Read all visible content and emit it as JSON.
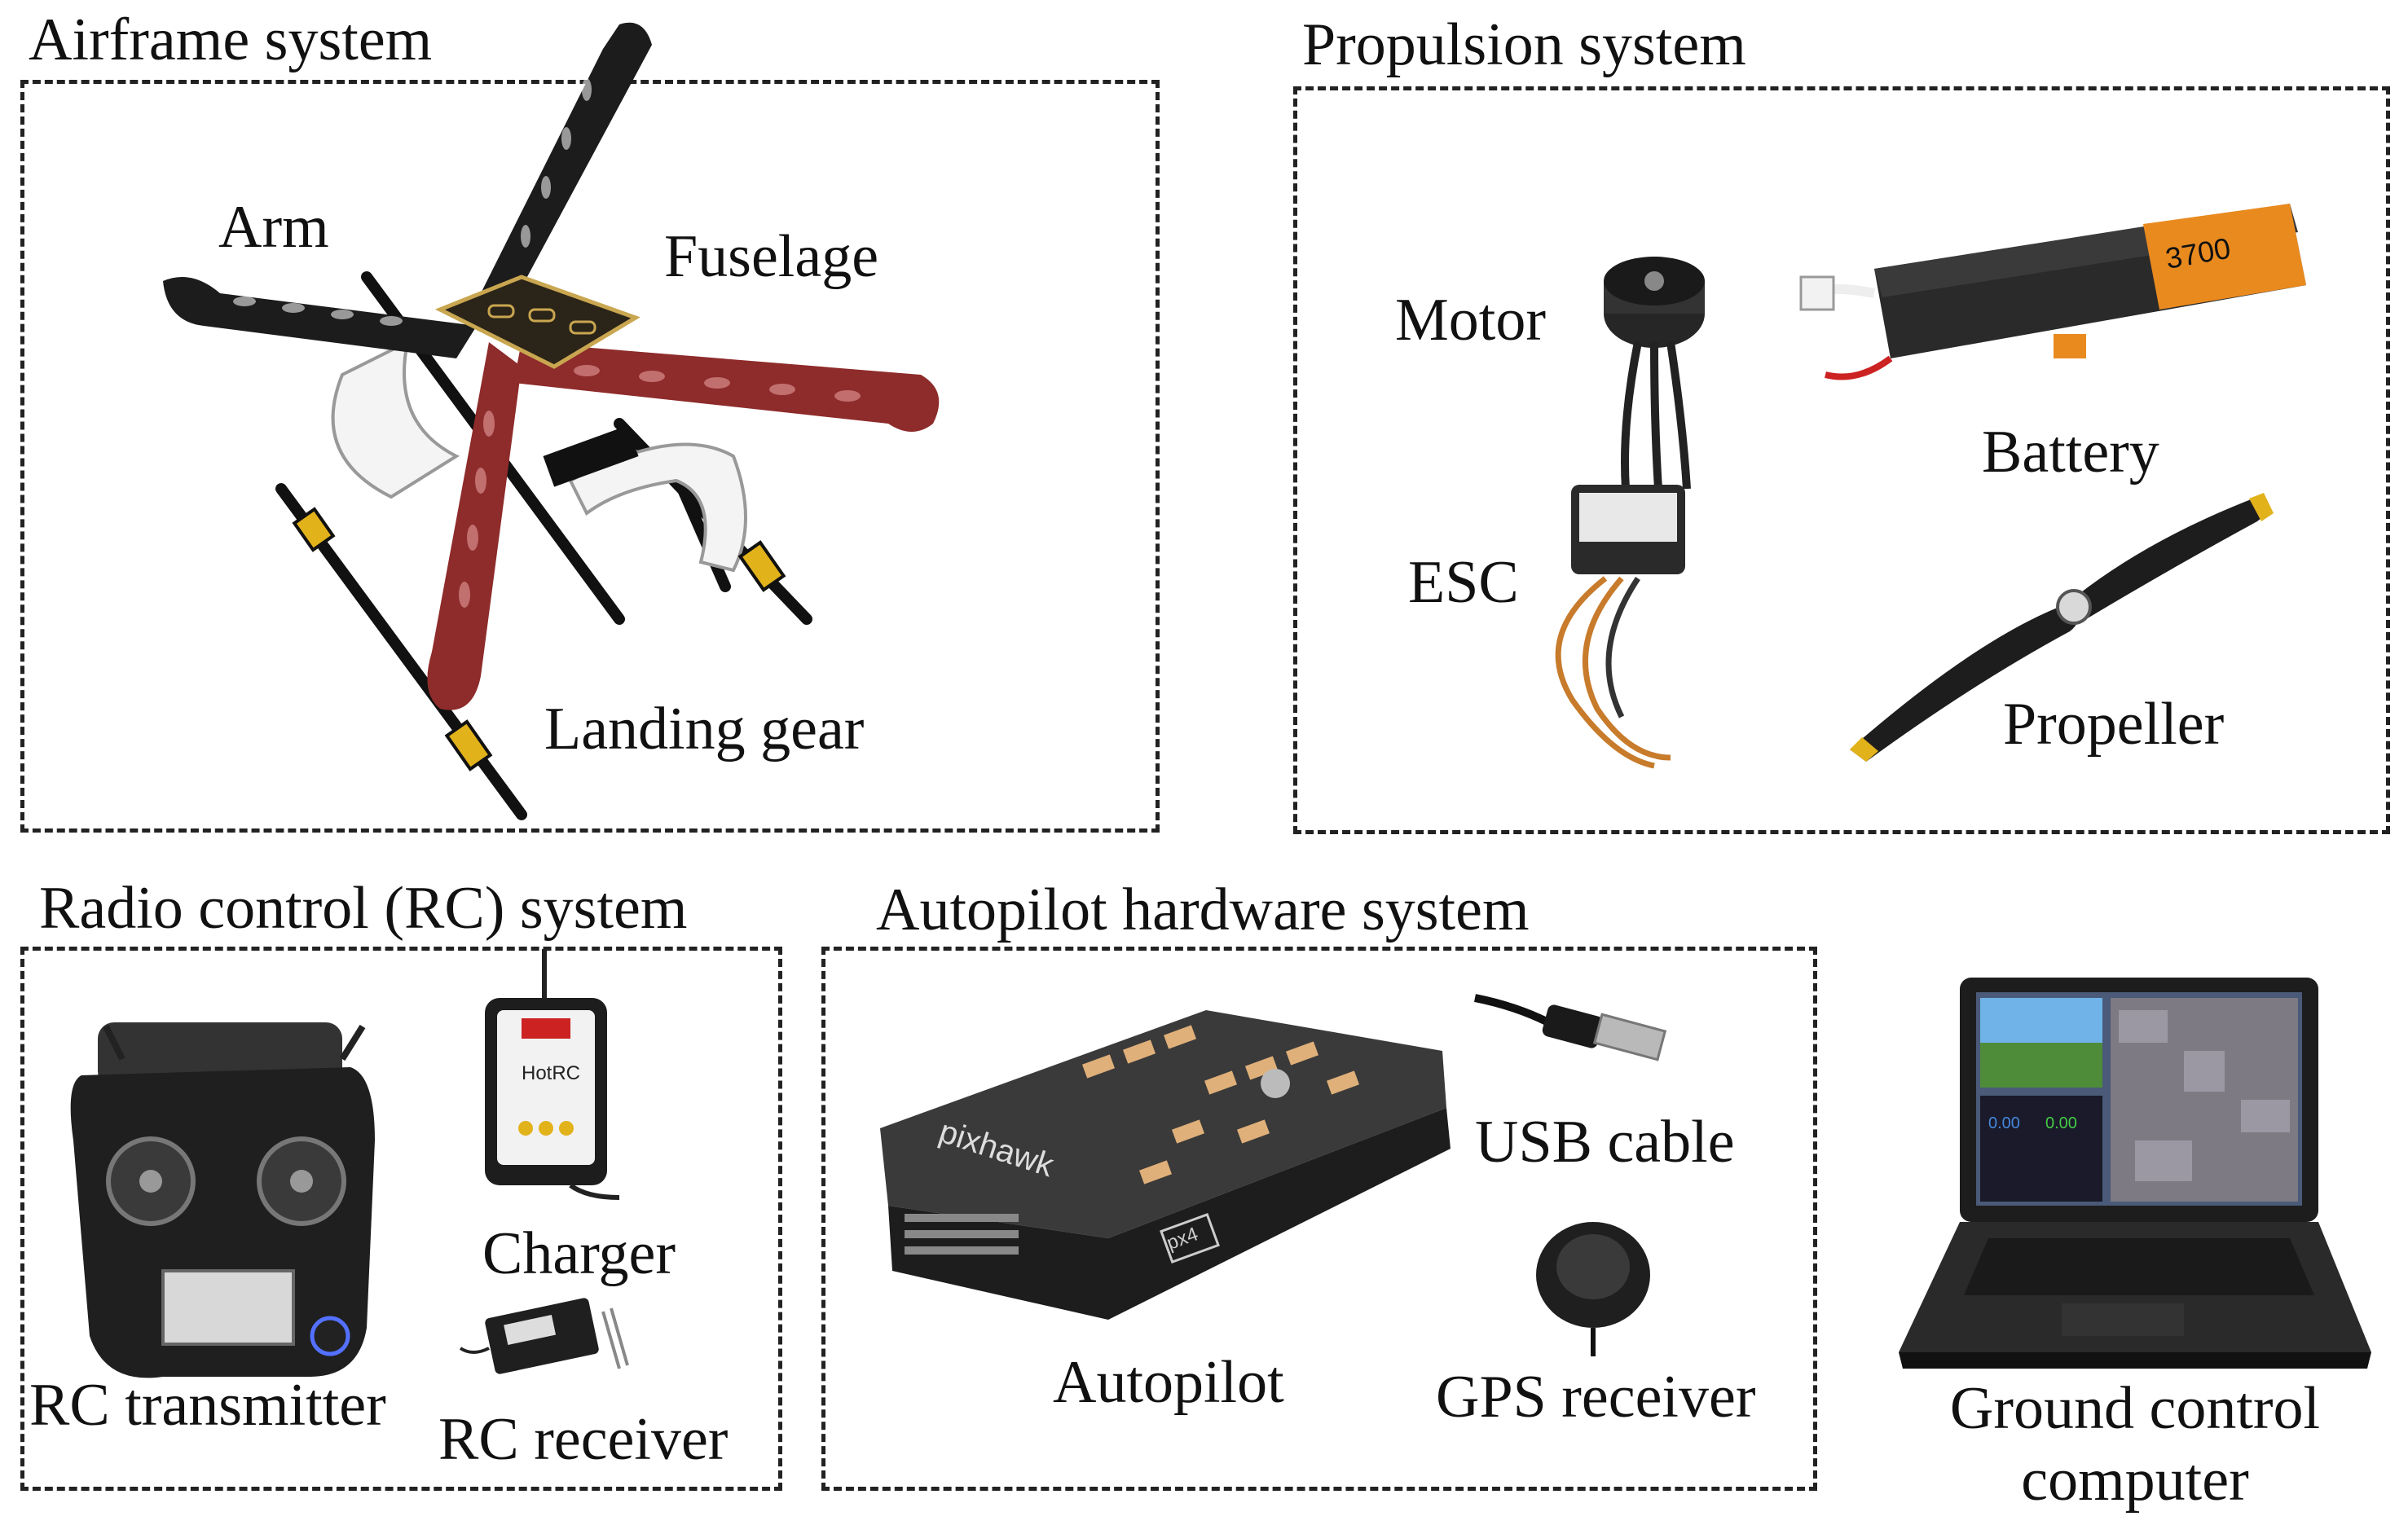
{
  "groups": {
    "airframe": {
      "title": "Airframe system",
      "labels": {
        "arm": "Arm",
        "fuselage": "Fuselage",
        "landing_gear": "Landing gear"
      }
    },
    "propulsion": {
      "title": "Propulsion system",
      "labels": {
        "motor": "Motor",
        "esc": "ESC",
        "battery": "Battery",
        "propeller": "Propeller"
      },
      "battery_print": "3700"
    },
    "rc": {
      "title": "Radio control (RC) system",
      "labels": {
        "charger": "Charger",
        "transmitter": "RC transmitter",
        "receiver": "RC receiver"
      },
      "charger_brand": "HotRC"
    },
    "autopilot": {
      "title": "Autopilot hardware system",
      "labels": {
        "autopilot": "Autopilot",
        "usb": "USB cable",
        "gps": "GPS receiver"
      },
      "board_name": "pixhawk",
      "board_badge": "px4"
    },
    "ground": {
      "label_line1": "Ground control",
      "label_line2": "computer",
      "readout": "0.00"
    }
  },
  "colors": {
    "frame_red": "#8e2b2b",
    "frame_black": "#1c1c1c",
    "accent_yellow": "#e2b21b",
    "battery_orange": "#e98a1f"
  }
}
